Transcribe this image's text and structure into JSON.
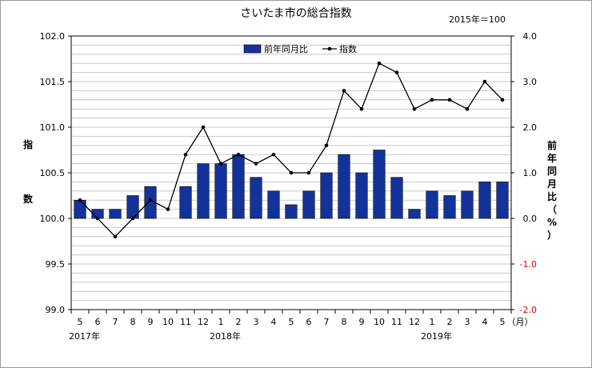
{
  "chart_data": {
    "type": "bar+line",
    "title": "さいたま市の総合指数",
    "note": "2015年＝100",
    "categories": [
      "5",
      "6",
      "7",
      "8",
      "9",
      "10",
      "11",
      "12",
      "1",
      "2",
      "3",
      "4",
      "5",
      "6",
      "7",
      "8",
      "9",
      "10",
      "11",
      "12",
      "1",
      "2",
      "3",
      "4",
      "5"
    ],
    "x_unit": "（月）",
    "year_labels": [
      {
        "label": "2017年",
        "at_index": 0
      },
      {
        "label": "2018年",
        "at_index": 8
      },
      {
        "label": "2019年",
        "at_index": 20
      }
    ],
    "left_axis": {
      "label": "指数",
      "ylim": [
        99.0,
        102.0
      ],
      "ticks": [
        "102.0",
        "101.5",
        "101.0",
        "100.5",
        "100.0",
        "99.5",
        "99.0"
      ],
      "tick_values": [
        102.0,
        101.5,
        101.0,
        100.5,
        100.0,
        99.5,
        99.0
      ]
    },
    "right_axis": {
      "label": "前年同月比（%）",
      "ylim": [
        -2.0,
        4.0
      ],
      "ticks": [
        "4.0",
        "3.0",
        "2.0",
        "1.0",
        "0.0",
        "-1.0",
        "-2.0"
      ],
      "tick_values": [
        4.0,
        3.0,
        2.0,
        1.0,
        0.0,
        -1.0,
        -2.0
      ],
      "negative_tick_color": "#e00000"
    },
    "series": [
      {
        "name": "前年同月比",
        "kind": "bar",
        "axis": "right",
        "color": "#13339a",
        "values": [
          0.4,
          0.2,
          0.2,
          0.5,
          0.7,
          0.0,
          0.7,
          1.2,
          1.2,
          1.4,
          0.9,
          0.6,
          0.3,
          0.6,
          1.0,
          1.4,
          1.0,
          1.5,
          0.9,
          0.2,
          0.6,
          0.5,
          0.6,
          0.8,
          0.8
        ]
      },
      {
        "name": "指数",
        "kind": "line",
        "axis": "left",
        "color": "#000000",
        "values": [
          100.2,
          100.0,
          99.8,
          100.0,
          100.2,
          100.1,
          100.7,
          101.0,
          100.6,
          100.7,
          100.6,
          100.7,
          100.5,
          100.5,
          100.8,
          101.4,
          101.2,
          101.7,
          101.6,
          101.2,
          101.3,
          101.3,
          101.2,
          101.5,
          101.3
        ]
      }
    ],
    "legend_position": "top-center",
    "grid": true
  }
}
